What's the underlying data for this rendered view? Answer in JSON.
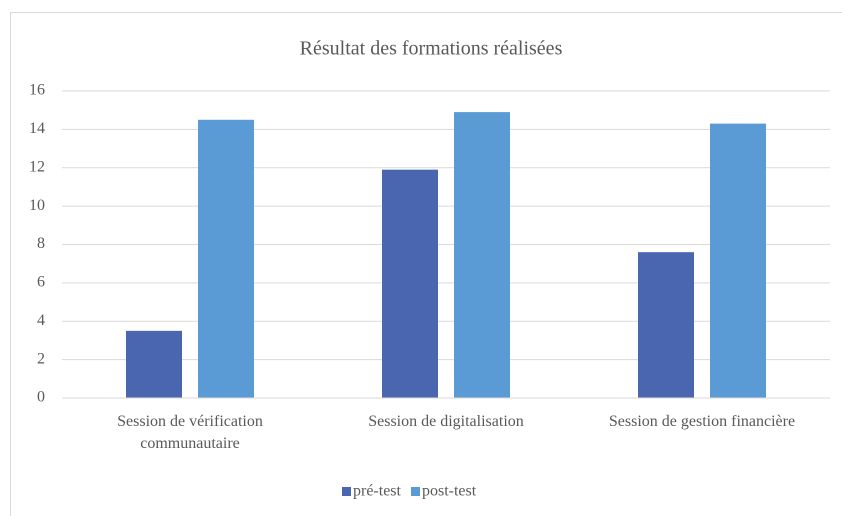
{
  "chart_data": {
    "type": "bar",
    "title": "Résultat des formations réalisées",
    "categories": [
      "Session de vérification communautaire",
      "Session de digitalisation",
      "Session de gestion financière"
    ],
    "series": [
      {
        "name": "pré-test",
        "color": "#4a66b0",
        "values": [
          3.5,
          11.9,
          7.6
        ]
      },
      {
        "name": "post-test",
        "color": "#5b9bd5",
        "values": [
          14.5,
          14.9,
          14.3
        ]
      }
    ],
    "ylim": [
      0,
      16
    ],
    "yticks": [
      0,
      2,
      4,
      6,
      8,
      10,
      12,
      14,
      16
    ],
    "grid": true,
    "legend": "bottom"
  }
}
